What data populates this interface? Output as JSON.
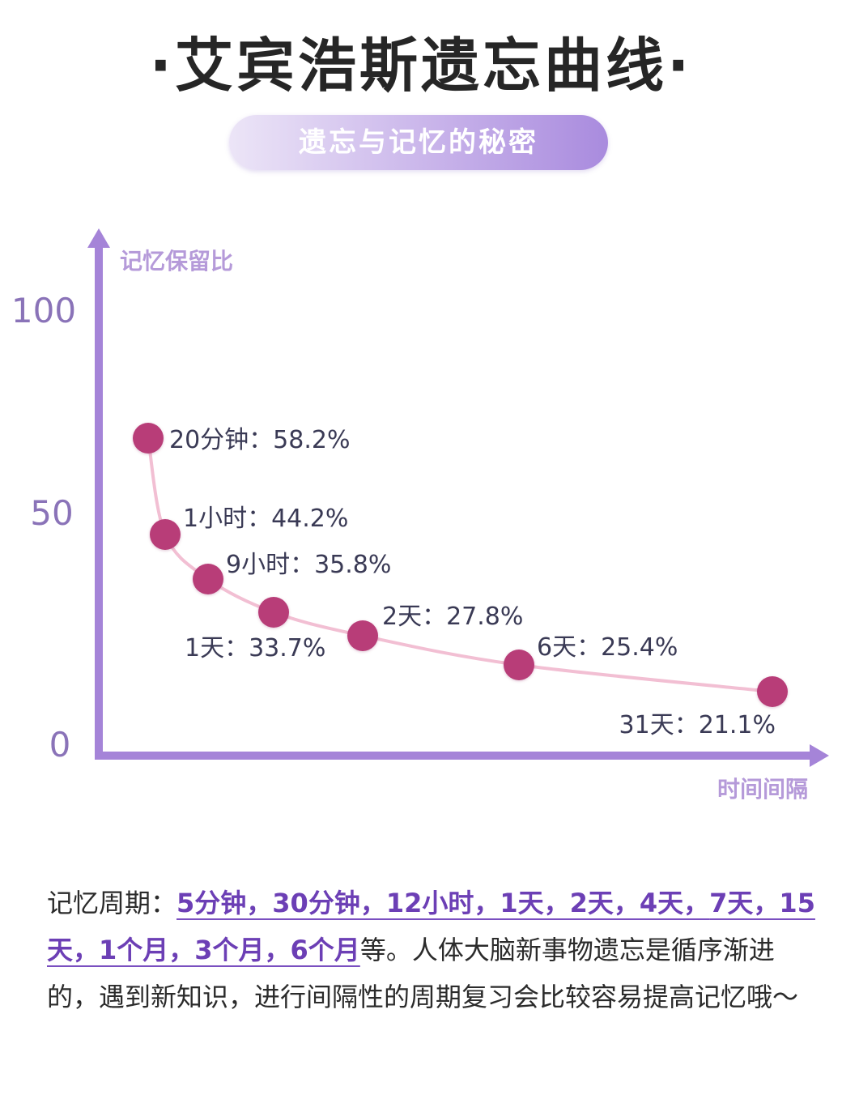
{
  "page": {
    "title": "·艾宾浩斯遗忘曲线·",
    "subtitle": "遗忘与记忆的秘密"
  },
  "chart_data": {
    "type": "line",
    "title": "艾宾浩斯遗忘曲线",
    "ylabel": "记忆保留比",
    "xlabel": "时间间隔",
    "ylim": [
      0,
      100
    ],
    "yticks": [
      "100",
      "50",
      "0"
    ],
    "points": [
      {
        "label": "20分钟：58.2%",
        "value": 58.2
      },
      {
        "label": "1小时：44.2%",
        "value": 44.2
      },
      {
        "label": "9小时：35.8%",
        "value": 35.8
      },
      {
        "label": "1天：33.7%",
        "value": 33.7
      },
      {
        "label": "2天：27.8%",
        "value": 27.8
      },
      {
        "label": "6天：25.4%",
        "value": 25.4
      },
      {
        "label": "31天：21.1%",
        "value": 21.1
      }
    ],
    "colors": {
      "axis": "#a584d8",
      "tick": "#8a73b8",
      "point": "#b83c78",
      "line": "#f2bfd3",
      "label": "#3a3a55"
    }
  },
  "description": {
    "prefix": "记忆周期：",
    "highlight_1": "5分钟，30分钟，12小时，1天，2天，4天，",
    "highlight_2": "7天，15天，1个月，3个月，6个月",
    "rest": "等。人体大脑新事物遗忘是循序渐进的，遇到新知识，进行间隔性的周期复习会比较容易提高记忆哦～"
  }
}
